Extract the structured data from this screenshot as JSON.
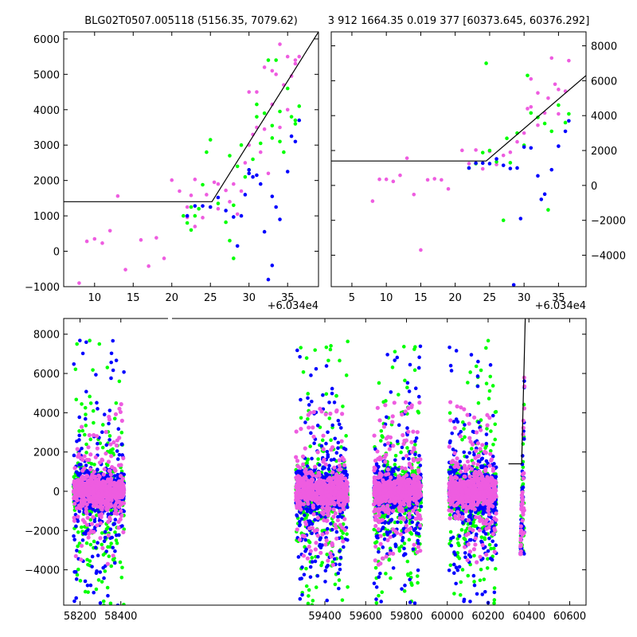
{
  "figure": {
    "title_left": "BLG02T0507.005118 (5156.35, 7079.62)",
    "title_right": "3 912 1664.35 0.019 377 [60373.645, 60376.292]",
    "x_offset_label": "+6.034e4"
  },
  "colors": {
    "green": "#00ff00",
    "blue": "#0000ff",
    "pink": "#ee5ce0",
    "line": "#000000"
  },
  "chart_data": [
    {
      "type": "scatter",
      "panel": "top-left",
      "x_offset": 60340,
      "xlim": [
        6,
        39
      ],
      "ylim": [
        -1000,
        6200
      ],
      "xticks": [
        10,
        15,
        20,
        25,
        30,
        35
      ],
      "yticks": [
        -1000,
        0,
        1000,
        2000,
        3000,
        4000,
        5000,
        6000
      ],
      "ytick_labels_side": "left",
      "model_line": [
        [
          6,
          1400
        ],
        [
          25.2,
          1400
        ],
        [
          39,
          6200
        ]
      ],
      "series": [
        {
          "color": "pink",
          "points": [
            [
              8,
              -900
            ],
            [
              9,
              280
            ],
            [
              10,
              350
            ],
            [
              11,
              230
            ],
            [
              12,
              580
            ],
            [
              13,
              1560
            ],
            [
              14,
              -520
            ],
            [
              16,
              320
            ],
            [
              17,
              -420
            ],
            [
              18,
              380
            ],
            [
              19,
              -200
            ],
            [
              20,
              2010
            ],
            [
              21,
              1700
            ],
            [
              22,
              1250
            ],
            [
              22.5,
              1580
            ],
            [
              23,
              2030
            ],
            [
              24,
              950
            ],
            [
              24.5,
              1600
            ],
            [
              25,
              1250
            ],
            [
              25.5,
              1950
            ],
            [
              26,
              1200
            ],
            [
              27,
              1720
            ],
            [
              28,
              1900
            ],
            [
              28.5,
              1050
            ],
            [
              29,
              1700
            ],
            [
              29.5,
              2500
            ],
            [
              30,
              3000
            ],
            [
              30.5,
              3300
            ],
            [
              31,
              3500
            ],
            [
              31.5,
              2800
            ],
            [
              32,
              3450
            ],
            [
              32.5,
              2200
            ],
            [
              33,
              4150
            ],
            [
              33.5,
              5000
            ],
            [
              34,
              5850
            ],
            [
              34.5,
              4700
            ],
            [
              35,
              5500
            ],
            [
              35.5,
              4950
            ],
            [
              36,
              5300
            ],
            [
              36.5,
              5500
            ],
            [
              31,
              4500
            ],
            [
              34,
              3500
            ],
            [
              35,
              4000
            ],
            [
              22,
              960
            ],
            [
              23,
              700
            ],
            [
              26,
              1900
            ],
            [
              27.5,
              1400
            ],
            [
              30,
              4500
            ],
            [
              32,
              5200
            ],
            [
              33,
              5100
            ],
            [
              36,
              5400
            ]
          ]
        },
        {
          "color": "green",
          "points": [
            [
              21.5,
              1000
            ],
            [
              22,
              800
            ],
            [
              22.5,
              1250
            ],
            [
              23,
              1000
            ],
            [
              23.5,
              1200
            ],
            [
              24,
              1880
            ],
            [
              24.5,
              2800
            ],
            [
              25,
              3150
            ],
            [
              26,
              1350
            ],
            [
              27,
              820
            ],
            [
              27.5,
              2700
            ],
            [
              28,
              1300
            ],
            [
              28.5,
              2400
            ],
            [
              29,
              3000
            ],
            [
              29.5,
              2100
            ],
            [
              30,
              2300
            ],
            [
              30.5,
              2600
            ],
            [
              31,
              4150
            ],
            [
              31.5,
              3050
            ],
            [
              32,
              3900
            ],
            [
              32.5,
              5400
            ],
            [
              33,
              3550
            ],
            [
              33.5,
              5400
            ],
            [
              34,
              3100
            ],
            [
              34.5,
              2800
            ],
            [
              35,
              4600
            ],
            [
              35.5,
              3800
            ],
            [
              36,
              3600
            ],
            [
              36.5,
              4100
            ],
            [
              22.5,
              600
            ],
            [
              27.5,
              300
            ],
            [
              28,
              -200
            ],
            [
              31,
              3800
            ],
            [
              33,
              3200
            ],
            [
              34,
              3950
            ],
            [
              36,
              3700
            ]
          ]
        },
        {
          "color": "blue",
          "points": [
            [
              22,
              1000
            ],
            [
              23,
              1280
            ],
            [
              24,
              1280
            ],
            [
              25,
              1250
            ],
            [
              26,
              1520
            ],
            [
              27,
              1150
            ],
            [
              28,
              970
            ],
            [
              28.5,
              150
            ],
            [
              29,
              1000
            ],
            [
              29.5,
              1600
            ],
            [
              30,
              2200
            ],
            [
              30.5,
              2100
            ],
            [
              31,
              2150
            ],
            [
              31.5,
              1900
            ],
            [
              32,
              550
            ],
            [
              32.5,
              -800
            ],
            [
              33,
              1550
            ],
            [
              33.5,
              1250
            ],
            [
              34,
              900
            ],
            [
              35,
              2250
            ],
            [
              35.5,
              3250
            ],
            [
              36,
              3100
            ],
            [
              36.5,
              3700
            ],
            [
              30,
              2300
            ],
            [
              33,
              -400
            ]
          ]
        }
      ]
    },
    {
      "type": "scatter",
      "panel": "top-right",
      "x_offset": 60340,
      "xlim": [
        2,
        39
      ],
      "ylim": [
        -5800,
        8800
      ],
      "xticks": [
        5,
        10,
        15,
        20,
        25,
        30,
        35
      ],
      "yticks": [
        -4000,
        -2000,
        0,
        2000,
        4000,
        6000,
        8000
      ],
      "ytick_labels_side": "right",
      "model_line": [
        [
          2,
          1400
        ],
        [
          24.5,
          1400
        ],
        [
          39,
          6300
        ]
      ],
      "series": [
        {
          "color": "pink",
          "points": [
            [
              8,
              -900
            ],
            [
              9,
              350
            ],
            [
              10,
              350
            ],
            [
              11,
              230
            ],
            [
              12,
              580
            ],
            [
              13,
              1560
            ],
            [
              14,
              -520
            ],
            [
              15,
              -3700
            ],
            [
              16,
              320
            ],
            [
              17,
              380
            ],
            [
              18,
              320
            ],
            [
              19,
              -200
            ],
            [
              21,
              2010
            ],
            [
              22,
              1250
            ],
            [
              23,
              2030
            ],
            [
              24,
              950
            ],
            [
              25,
              1950
            ],
            [
              26,
              1200
            ],
            [
              27,
              1720
            ],
            [
              28,
              1900
            ],
            [
              29,
              2500
            ],
            [
              30,
              3000
            ],
            [
              30.5,
              4400
            ],
            [
              31,
              4500
            ],
            [
              32,
              3450
            ],
            [
              33,
              4150
            ],
            [
              33.5,
              5000
            ],
            [
              34,
              7300
            ],
            [
              34.5,
              5800
            ],
            [
              35,
              5500
            ],
            [
              36,
              5400
            ],
            [
              36.5,
              7150
            ],
            [
              31,
              6100
            ],
            [
              32,
              5300
            ],
            [
              35,
              4100
            ]
          ]
        },
        {
          "color": "green",
          "points": [
            [
              22,
              1000
            ],
            [
              23,
              1250
            ],
            [
              24,
              1880
            ],
            [
              24.5,
              7000
            ],
            [
              25,
              2000
            ],
            [
              26,
              1350
            ],
            [
              27,
              -2000
            ],
            [
              27.5,
              2700
            ],
            [
              28,
              1300
            ],
            [
              29,
              3000
            ],
            [
              30,
              2300
            ],
            [
              30.5,
              6300
            ],
            [
              31,
              4150
            ],
            [
              32,
              3900
            ],
            [
              33,
              3550
            ],
            [
              33.5,
              -1400
            ],
            [
              34,
              3100
            ],
            [
              35,
              4600
            ],
            [
              36,
              3600
            ],
            [
              36.5,
              4100
            ]
          ]
        },
        {
          "color": "blue",
          "points": [
            [
              22,
              1000
            ],
            [
              23,
              1280
            ],
            [
              24,
              1280
            ],
            [
              25,
              1250
            ],
            [
              26,
              1520
            ],
            [
              27,
              1150
            ],
            [
              28,
              970
            ],
            [
              28.5,
              -5700
            ],
            [
              29,
              1000
            ],
            [
              29.5,
              -1900
            ],
            [
              30,
              2200
            ],
            [
              31,
              2150
            ],
            [
              32,
              550
            ],
            [
              32.5,
              -800
            ],
            [
              33,
              -500
            ],
            [
              34,
              900
            ],
            [
              35,
              2250
            ],
            [
              36,
              3100
            ],
            [
              36.5,
              3700
            ]
          ]
        }
      ]
    },
    {
      "type": "scatter",
      "panel": "bottom",
      "xlim": [
        58120,
        60680
      ],
      "ylim": [
        -5800,
        8800
      ],
      "xticks": [
        58200,
        58400,
        59400,
        59600,
        59800,
        60000,
        60200,
        60400,
        60600
      ],
      "yticks": [
        -4000,
        -2000,
        0,
        2000,
        4000,
        6000,
        8000
      ],
      "ytick_labels_side": "left",
      "model_line": [
        [
          60300,
          1400
        ],
        [
          60364.5,
          1400
        ],
        [
          60382,
          8800
        ]
      ],
      "season_clusters": [
        {
          "x_range": [
            58168,
            58416
          ]
        },
        {
          "x_range": [
            59258,
            59512
          ]
        },
        {
          "x_range": [
            59640,
            59872
          ]
        },
        {
          "x_range": [
            60008,
            60240
          ]
        },
        {
          "x_range": [
            60358,
            60378
          ]
        }
      ]
    }
  ]
}
